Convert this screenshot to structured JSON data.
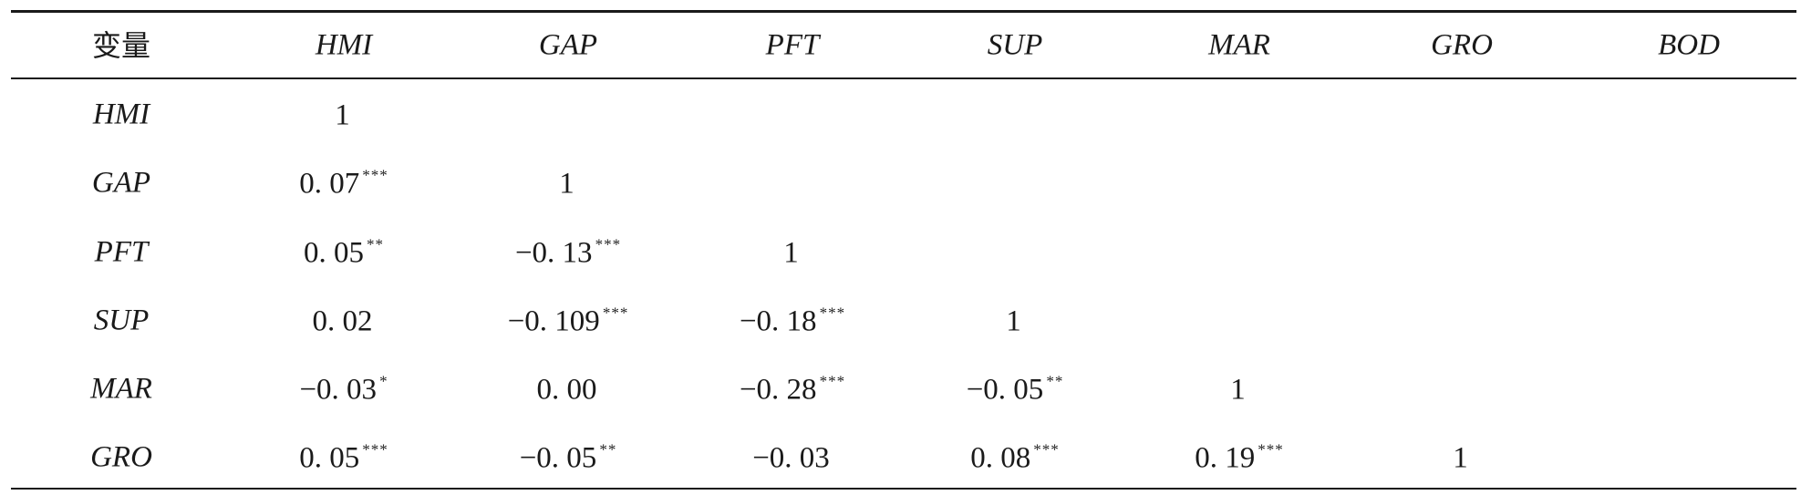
{
  "table": {
    "header": {
      "label": "变量",
      "columns": [
        "HMI",
        "GAP",
        "PFT",
        "SUP",
        "MAR",
        "GRO",
        "BOD"
      ]
    },
    "rows": [
      {
        "name": "HMI",
        "cells": [
          {
            "v": "1",
            "s": ""
          }
        ]
      },
      {
        "name": "GAP",
        "cells": [
          {
            "v": "0. 07",
            "s": "***"
          },
          {
            "v": "1",
            "s": ""
          }
        ]
      },
      {
        "name": "PFT",
        "cells": [
          {
            "v": "0. 05",
            "s": "**"
          },
          {
            "v": "−0. 13",
            "s": "***"
          },
          {
            "v": "1",
            "s": ""
          }
        ]
      },
      {
        "name": "SUP",
        "cells": [
          {
            "v": "0. 02",
            "s": ""
          },
          {
            "v": "−0. 109",
            "s": "***"
          },
          {
            "v": "−0. 18",
            "s": "***"
          },
          {
            "v": "1",
            "s": ""
          }
        ]
      },
      {
        "name": "MAR",
        "cells": [
          {
            "v": "−0. 03",
            "s": "*"
          },
          {
            "v": "0. 00",
            "s": ""
          },
          {
            "v": "−0. 28",
            "s": "***"
          },
          {
            "v": "−0. 05",
            "s": "**"
          },
          {
            "v": "1",
            "s": ""
          }
        ]
      },
      {
        "name": "GRO",
        "cells": [
          {
            "v": "0. 05",
            "s": "***"
          },
          {
            "v": "−0. 05",
            "s": "**"
          },
          {
            "v": "−0. 03",
            "s": ""
          },
          {
            "v": "0. 08",
            "s": "***"
          },
          {
            "v": "0. 19",
            "s": "***"
          },
          {
            "v": "1",
            "s": ""
          }
        ]
      }
    ]
  }
}
